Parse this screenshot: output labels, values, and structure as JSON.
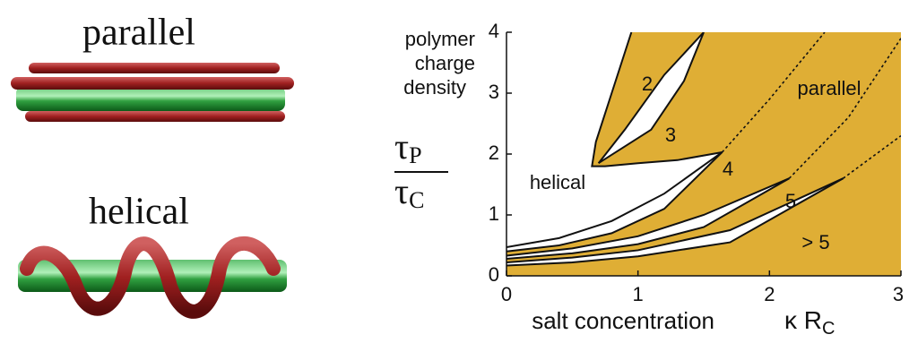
{
  "illustrations": {
    "parallel": "parallel",
    "helical": "helical"
  },
  "chart_data": {
    "type": "phase",
    "y_label_lines": [
      "polymer",
      "charge",
      "density"
    ],
    "y_symbol": {
      "numerator": "τ",
      "numerator_sub": "P",
      "denominator": "τ",
      "denominator_sub": "C"
    },
    "x_label": "salt concentration",
    "x_symbol": {
      "main": "κ R",
      "sub": "C"
    },
    "xlim": [
      0,
      3
    ],
    "ylim": [
      0,
      4
    ],
    "xticks": [
      0,
      1,
      2,
      3
    ],
    "yticks": [
      0,
      1,
      2,
      3,
      4
    ],
    "fill_color": "#dfae35",
    "region_labels": [
      "2",
      "3",
      "4",
      "5",
      "> 5",
      "helical",
      "parallel"
    ],
    "boundaries": [
      {
        "x": [
          0,
          0.4,
          0.8,
          1.2,
          1.64
        ],
        "y": [
          0.47,
          0.62,
          0.9,
          1.35,
          2.03
        ]
      },
      {
        "x": [
          0,
          0.4,
          0.8,
          1.2,
          1.64
        ],
        "y": [
          0.4,
          0.5,
          0.7,
          1.1,
          2.03
        ]
      },
      {
        "x": [
          0,
          0.5,
          1,
          1.5,
          2.15
        ],
        "y": [
          0.33,
          0.45,
          0.65,
          1.0,
          1.6
        ]
      },
      {
        "x": [
          0,
          0.5,
          1,
          1.5,
          2.15
        ],
        "y": [
          0.28,
          0.37,
          0.52,
          0.8,
          1.6
        ]
      },
      {
        "x": [
          0,
          0.5,
          1,
          1.7,
          2.56
        ],
        "y": [
          0.22,
          0.3,
          0.42,
          0.75,
          1.6
        ]
      },
      {
        "x": [
          0,
          0.5,
          1,
          1.7,
          2.56
        ],
        "y": [
          0.17,
          0.22,
          0.32,
          0.55,
          1.6
        ]
      },
      {
        "x": [
          0.95,
          0.8,
          0.68,
          0.65,
          0.75,
          1.0,
          1.3,
          1.64
        ],
        "y": [
          4,
          3,
          2.2,
          1.8,
          1.8,
          1.85,
          1.9,
          2.03
        ]
      },
      {
        "x": [
          0.7,
          0.9,
          1.2,
          1.5
        ],
        "y": [
          1.85,
          2.4,
          3.3,
          4
        ]
      },
      {
        "x": [
          0.7,
          1.1,
          1.35,
          1.5
        ],
        "y": [
          1.85,
          2.4,
          3.2,
          4
        ]
      }
    ],
    "dotted": [
      {
        "x": [
          1.64,
          2.0,
          2.42
        ],
        "y": [
          2.03,
          2.9,
          4
        ]
      },
      {
        "x": [
          2.15,
          2.6,
          3.0
        ],
        "y": [
          1.6,
          2.6,
          3.9
        ]
      },
      {
        "x": [
          2.56,
          3.0
        ],
        "y": [
          1.6,
          2.3
        ]
      }
    ]
  }
}
